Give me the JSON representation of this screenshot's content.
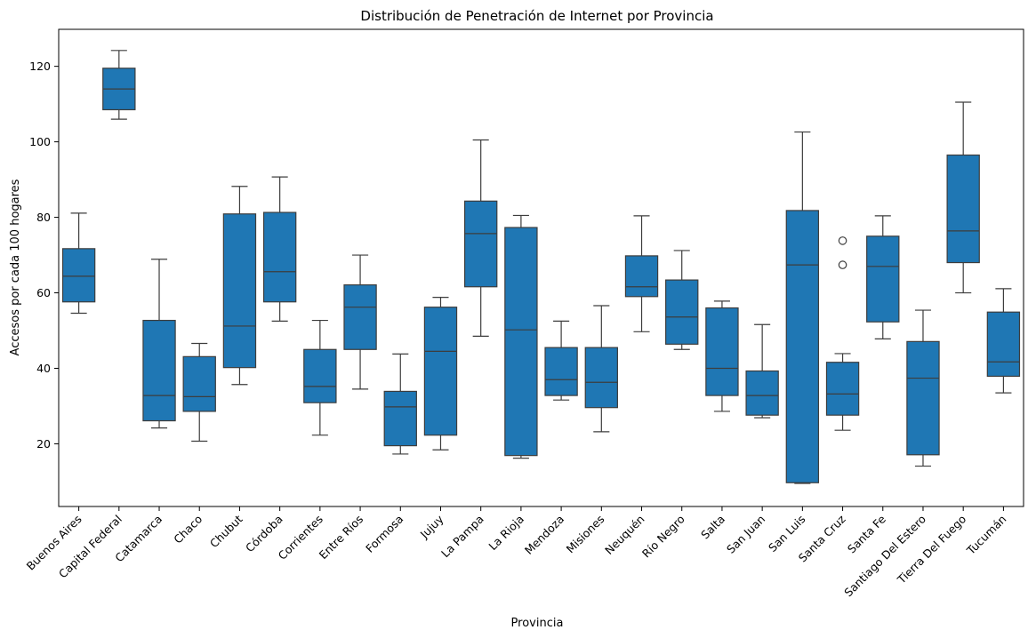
{
  "chart_data": {
    "type": "box",
    "title": "Distribución de Penetración de Internet por Provincia",
    "xlabel": "Provincia",
    "ylabel": "Accesos por cada 100 hogares",
    "ylim": [
      3.4,
      129.8
    ],
    "yticks": [
      20,
      40,
      60,
      80,
      100,
      120
    ],
    "grid": false,
    "box_color": "#1f77b4",
    "categories": [
      "Buenos Aires",
      "Capital Federal",
      "Catamarca",
      "Chaco",
      "Chubut",
      "Córdoba",
      "Corrientes",
      "Entre Ríos",
      "Formosa",
      "Jujuy",
      "La Pampa",
      "La Rioja",
      "Mendoza",
      "Misiones",
      "Neuquén",
      "Río Negro",
      "Salta",
      "San Juan",
      "San Luis",
      "Santa Cruz",
      "Santa Fe",
      "Santiago Del Estero",
      "Tierra Del Fuego",
      "Tucumán"
    ],
    "boxes": [
      {
        "min": 54.6,
        "q1": 57.6,
        "median": 64.4,
        "q3": 71.7,
        "max": 81.1,
        "outliers": []
      },
      {
        "min": 106.0,
        "q1": 108.5,
        "median": 114.0,
        "q3": 119.5,
        "max": 124.2,
        "outliers": []
      },
      {
        "min": 24.2,
        "q1": 26.1,
        "median": 32.8,
        "q3": 52.7,
        "max": 68.9,
        "outliers": []
      },
      {
        "min": 20.7,
        "q1": 28.6,
        "median": 32.5,
        "q3": 43.1,
        "max": 46.6,
        "outliers": []
      },
      {
        "min": 35.7,
        "q1": 40.2,
        "median": 51.2,
        "q3": 80.9,
        "max": 88.2,
        "outliers": []
      },
      {
        "min": 52.5,
        "q1": 57.6,
        "median": 65.6,
        "q3": 81.3,
        "max": 90.7,
        "outliers": []
      },
      {
        "min": 22.3,
        "q1": 30.9,
        "median": 35.2,
        "q3": 45.0,
        "max": 52.7,
        "outliers": []
      },
      {
        "min": 34.5,
        "q1": 45.0,
        "median": 56.2,
        "q3": 62.1,
        "max": 70.0,
        "outliers": []
      },
      {
        "min": 17.3,
        "q1": 19.5,
        "median": 29.8,
        "q3": 33.9,
        "max": 43.8,
        "outliers": []
      },
      {
        "min": 18.4,
        "q1": 22.3,
        "median": 44.5,
        "q3": 56.2,
        "max": 58.8,
        "outliers": []
      },
      {
        "min": 48.5,
        "q1": 61.6,
        "median": 75.7,
        "q3": 84.3,
        "max": 100.5,
        "outliers": []
      },
      {
        "min": 16.2,
        "q1": 16.9,
        "median": 50.2,
        "q3": 77.3,
        "max": 80.5,
        "outliers": []
      },
      {
        "min": 31.6,
        "q1": 32.8,
        "median": 37.0,
        "q3": 45.5,
        "max": 52.5,
        "outliers": []
      },
      {
        "min": 23.2,
        "q1": 29.6,
        "median": 36.3,
        "q3": 45.5,
        "max": 56.6,
        "outliers": []
      },
      {
        "min": 49.7,
        "q1": 59.0,
        "median": 61.6,
        "q3": 69.8,
        "max": 80.4,
        "outliers": []
      },
      {
        "min": 45.0,
        "q1": 46.4,
        "median": 53.6,
        "q3": 63.4,
        "max": 71.2,
        "outliers": []
      },
      {
        "min": 28.6,
        "q1": 32.8,
        "median": 40.0,
        "q3": 56.0,
        "max": 57.8,
        "outliers": []
      },
      {
        "min": 26.9,
        "q1": 27.6,
        "median": 32.8,
        "q3": 39.3,
        "max": 51.6,
        "outliers": []
      },
      {
        "min": 9.5,
        "q1": 9.7,
        "median": 67.4,
        "q3": 81.8,
        "max": 102.6,
        "outliers": []
      },
      {
        "min": 23.6,
        "q1": 27.6,
        "median": 33.2,
        "q3": 41.6,
        "max": 43.9,
        "outliers": [
          67.4,
          73.8
        ]
      },
      {
        "min": 47.8,
        "q1": 52.3,
        "median": 67.0,
        "q3": 75.0,
        "max": 80.4,
        "outliers": []
      },
      {
        "min": 14.1,
        "q1": 17.1,
        "median": 37.4,
        "q3": 47.1,
        "max": 55.4,
        "outliers": []
      },
      {
        "min": 60.0,
        "q1": 68.0,
        "median": 76.4,
        "q3": 96.5,
        "max": 110.5,
        "outliers": []
      },
      {
        "min": 33.5,
        "q1": 37.9,
        "median": 41.7,
        "q3": 54.9,
        "max": 61.1,
        "outliers": []
      }
    ]
  }
}
